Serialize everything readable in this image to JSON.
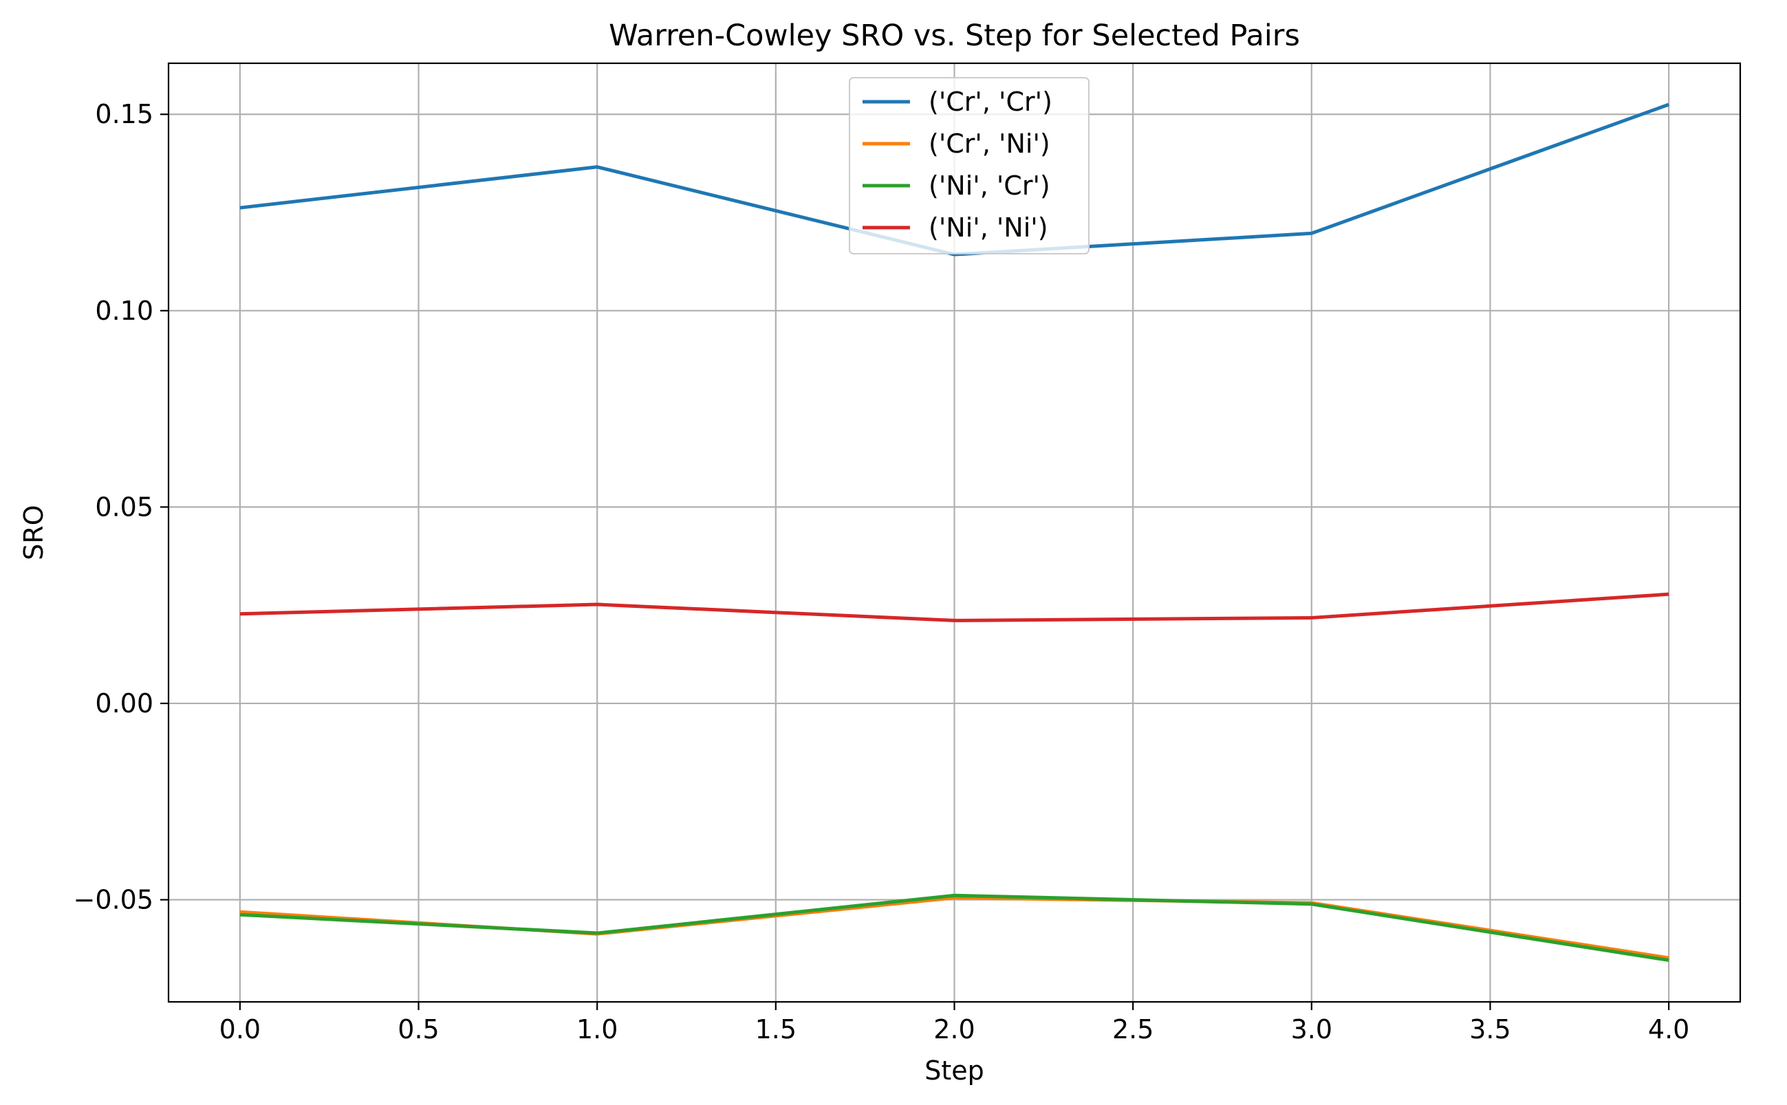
{
  "chart_data": {
    "type": "line",
    "title": "Warren-Cowley SRO vs. Step for Selected Pairs",
    "xlabel": "Step",
    "ylabel": "SRO",
    "x": [
      0,
      1,
      2,
      3,
      4
    ],
    "xlim": [
      -0.2,
      4.2
    ],
    "ylim": [
      -0.076,
      0.163
    ],
    "xticks": [
      0.0,
      0.5,
      1.0,
      1.5,
      2.0,
      2.5,
      3.0,
      3.5,
      4.0
    ],
    "xtick_labels": [
      "0.0",
      "0.5",
      "1.0",
      "1.5",
      "2.0",
      "2.5",
      "3.0",
      "3.5",
      "4.0"
    ],
    "yticks": [
      -0.05,
      0.0,
      0.05,
      0.1,
      0.15
    ],
    "ytick_labels": [
      "−0.05",
      "0.00",
      "0.05",
      "0.10",
      "0.15"
    ],
    "grid": true,
    "legend_position": "upper-center",
    "series": [
      {
        "name": "('Cr', 'Cr')",
        "color": "#1f77b4",
        "values": [
          0.1262,
          0.1366,
          0.1143,
          0.1197,
          0.1525
        ]
      },
      {
        "name": "('Cr', 'Ni')",
        "color": "#ff7f0e",
        "values": [
          -0.0531,
          -0.0587,
          -0.0495,
          -0.0508,
          -0.0648
        ]
      },
      {
        "name": "('Ni', 'Cr')",
        "color": "#2ca02c",
        "values": [
          -0.0538,
          -0.0585,
          -0.0489,
          -0.0511,
          -0.0654
        ]
      },
      {
        "name": "('Ni', 'Ni')",
        "color": "#d62728",
        "values": [
          0.0228,
          0.0252,
          0.0211,
          0.0218,
          0.0278
        ]
      }
    ]
  }
}
